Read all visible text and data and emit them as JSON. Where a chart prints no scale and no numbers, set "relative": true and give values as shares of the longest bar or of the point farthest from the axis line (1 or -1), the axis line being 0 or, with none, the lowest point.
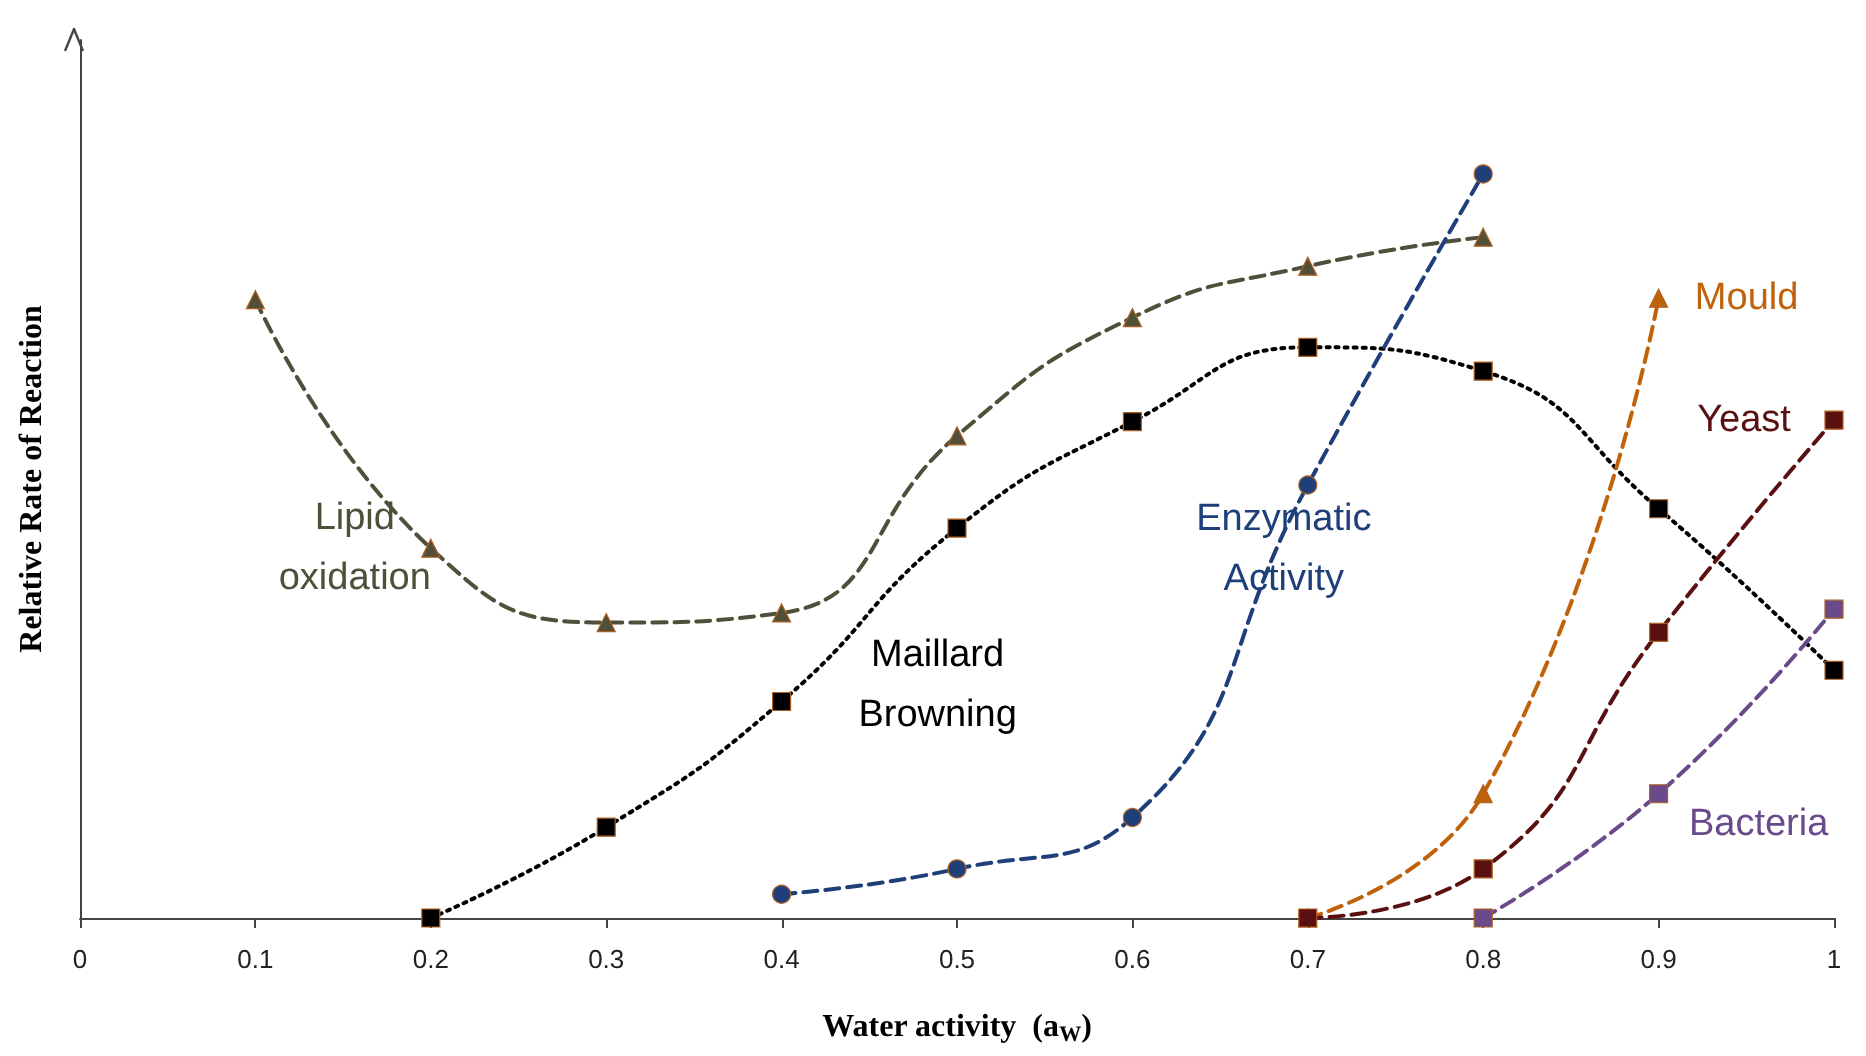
{
  "chart_data": {
    "type": "line",
    "relative": true,
    "xlabel": "Water activity  (a$_{W}$)",
    "ylabel": "Relative Rate of Reaction",
    "xlim": [
      0,
      1
    ],
    "xticks": [
      0,
      0.1,
      0.2,
      0.3,
      0.4,
      0.5,
      0.6,
      0.7,
      0.8,
      0.9,
      1
    ],
    "grid": false,
    "legend": false,
    "series": [
      {
        "name": "Lipid oxidation",
        "color": "#4f4f3a",
        "marker": "triangle",
        "line_style": "dashed",
        "x": [
          0.1,
          0.2,
          0.3,
          0.4,
          0.5,
          0.6,
          0.7,
          0.8
        ],
        "values": [
          0.831,
          0.497,
          0.397,
          0.41,
          0.648,
          0.807,
          0.876,
          0.915
        ]
      },
      {
        "name": "Maillard Browning",
        "color": "#000000",
        "marker": "square",
        "line_style": "dotted",
        "x": [
          0.2,
          0.3,
          0.4,
          0.5,
          0.6,
          0.7,
          0.8,
          0.9,
          1
        ],
        "values": [
          0,
          0.122,
          0.291,
          0.524,
          0.667,
          0.767,
          0.735,
          0.55,
          0.333
        ]
      },
      {
        "name": "Enzymatic Activity",
        "color": "#1f3f7a",
        "marker": "circle",
        "line_style": "dashed",
        "x": [
          0.4,
          0.5,
          0.6,
          0.7,
          0.8
        ],
        "values": [
          0.032,
          0.066,
          0.135,
          0.582,
          1
        ]
      },
      {
        "name": "Mould",
        "color": "#c0620a",
        "marker": "triangle",
        "line_style": "dashed",
        "x": [
          0.7,
          0.8,
          0.9
        ],
        "values": [
          0,
          0.167,
          0.833
        ]
      },
      {
        "name": "Yeast",
        "color": "#5a1010",
        "marker": "square",
        "line_style": "dashed",
        "x": [
          0.7,
          0.8,
          0.9,
          1
        ],
        "values": [
          0,
          0.066,
          0.384,
          0.669
        ]
      },
      {
        "name": "Bacteria",
        "color": "#6a4a8a",
        "marker": "square",
        "line_style": "dashed",
        "x": [
          0.8,
          0.9,
          1
        ],
        "values": [
          0,
          0.167,
          0.415
        ]
      }
    ]
  }
}
